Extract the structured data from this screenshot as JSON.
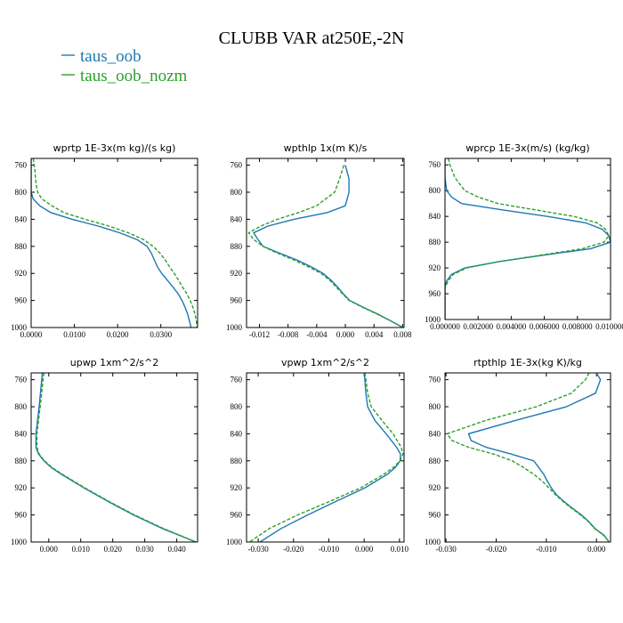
{
  "title": "CLUBB VAR at250E,-2N",
  "colors": {
    "taus_oob": "#1f77b4",
    "taus_oob_nozm": "#2ca02c"
  },
  "legend": [
    {
      "name": "taus_oob",
      "color": "#1f77b4",
      "style": "solid"
    },
    {
      "name": "taus_oob_nozm",
      "color": "#2ca02c",
      "style": "dashed"
    }
  ],
  "chart_data": [
    {
      "type": "line",
      "title": "wprtp  1E-3x(m kg)/(s kg)",
      "xlim": [
        0.0,
        0.0385
      ],
      "ylim": [
        1000,
        750
      ],
      "xticks": [
        "0.0000",
        "0.0100",
        "0.0200",
        "0.0300"
      ],
      "xtick_values": [
        0.0,
        0.01,
        0.02,
        0.03
      ],
      "yticks": [
        "760",
        "800",
        "840",
        "880",
        "920",
        "960",
        "1000"
      ],
      "y": [
        750,
        760,
        770,
        780,
        790,
        800,
        810,
        820,
        830,
        840,
        850,
        860,
        870,
        880,
        890,
        900,
        910,
        920,
        930,
        940,
        950,
        960,
        970,
        980,
        990,
        1000
      ],
      "series": [
        {
          "name": "taus_oob",
          "values": [
            0.0,
            0.0,
            0.0,
            0.0,
            0.0,
            0.0,
            0.0005,
            0.002,
            0.0045,
            0.0095,
            0.0155,
            0.0205,
            0.0245,
            0.0268,
            0.0278,
            0.0285,
            0.0292,
            0.0302,
            0.0315,
            0.0328,
            0.034,
            0.0349,
            0.0356,
            0.0362,
            0.0366,
            0.037
          ]
        },
        {
          "name": "taus_oob_nozm",
          "values": [
            0.0005,
            0.0007,
            0.0009,
            0.001,
            0.0012,
            0.0015,
            0.0025,
            0.0048,
            0.0075,
            0.0125,
            0.018,
            0.0225,
            0.026,
            0.0282,
            0.0298,
            0.031,
            0.032,
            0.0331,
            0.0341,
            0.035,
            0.036,
            0.0368,
            0.0374,
            0.0379,
            0.0382,
            0.0384
          ]
        }
      ]
    },
    {
      "type": "line",
      "title": "wpthlp  1x(m K)/s",
      "xlim": [
        -0.0138,
        0.0082
      ],
      "ylim": [
        1000,
        750
      ],
      "xticks": [
        "-0.012",
        "-0.008",
        "-0.004",
        "0.000",
        "0.004",
        "0.008"
      ],
      "xtick_values": [
        -0.012,
        -0.008,
        -0.004,
        0.0,
        0.004,
        0.008
      ],
      "yticks": [
        "760",
        "800",
        "840",
        "880",
        "920",
        "960",
        "1000"
      ],
      "y": [
        760,
        780,
        800,
        820,
        830,
        840,
        850,
        860,
        870,
        880,
        890,
        900,
        910,
        920,
        930,
        940,
        950,
        960,
        970,
        980,
        990,
        1000
      ],
      "series": [
        {
          "name": "taus_oob",
          "values": [
            0.0,
            0.0005,
            0.0005,
            0.0,
            -0.0025,
            -0.0072,
            -0.0108,
            -0.0128,
            -0.0122,
            -0.0115,
            -0.0092,
            -0.0068,
            -0.0048,
            -0.0031,
            -0.002,
            -0.0011,
            -0.0003,
            0.0006,
            0.0025,
            0.0045,
            0.0063,
            0.008
          ]
        },
        {
          "name": "taus_oob_nozm",
          "values": [
            -0.0002,
            -0.0008,
            -0.0015,
            -0.004,
            -0.0065,
            -0.0095,
            -0.0118,
            -0.0135,
            -0.0128,
            -0.0115,
            -0.0095,
            -0.0072,
            -0.0052,
            -0.0034,
            -0.0022,
            -0.0013,
            -0.0004,
            0.0005,
            0.0024,
            0.0044,
            0.0063,
            0.0081
          ]
        }
      ]
    },
    {
      "type": "line",
      "title": "wprcp  1E-3x(m/s) (kg/kg)",
      "xlim": [
        0.0,
        0.01
      ],
      "ylim": [
        1000,
        750
      ],
      "xticks": [
        "0.000000",
        "0.002000",
        "0.004000",
        "0.006000",
        "0.008000",
        "0.010000"
      ],
      "xtick_values": [
        0.0,
        0.002,
        0.004,
        0.006,
        0.008,
        0.01
      ],
      "yticks": [
        "760",
        "800",
        "840",
        "880",
        "920",
        "960",
        "1000"
      ],
      "y": [
        750,
        760,
        780,
        800,
        810,
        820,
        830,
        840,
        850,
        860,
        870,
        880,
        890,
        900,
        910,
        920,
        930,
        940,
        950,
        960,
        980,
        1000
      ],
      "series": [
        {
          "name": "taus_oob",
          "values": [
            0.0,
            0.0,
            0.0,
            0.0001,
            0.0004,
            0.001,
            0.0035,
            0.0062,
            0.0085,
            0.0095,
            0.0099,
            0.01,
            0.0088,
            0.006,
            0.0033,
            0.0012,
            0.0004,
            0.0001,
            0.0,
            0.0,
            0.0,
            0.0
          ]
        },
        {
          "name": "taus_oob_nozm",
          "values": [
            0.0002,
            0.0003,
            0.0006,
            0.0012,
            0.002,
            0.0032,
            0.0055,
            0.0078,
            0.0092,
            0.0097,
            0.0099,
            0.0096,
            0.0083,
            0.0058,
            0.0033,
            0.0013,
            0.0005,
            0.0002,
            0.0,
            0.0,
            0.0,
            0.0
          ]
        }
      ]
    },
    {
      "type": "line",
      "title": "upwp  1xm^2/s^2",
      "xlim": [
        -0.0055,
        0.0465
      ],
      "ylim": [
        1000,
        750
      ],
      "xticks": [
        "0.000",
        "0.010",
        "0.020",
        "0.030",
        "0.040"
      ],
      "xtick_values": [
        0.0,
        0.01,
        0.02,
        0.03,
        0.04
      ],
      "yticks": [
        "760",
        "800",
        "840",
        "880",
        "920",
        "960",
        "1000"
      ],
      "y": [
        750,
        760,
        780,
        800,
        820,
        840,
        860,
        870,
        880,
        890,
        900,
        920,
        940,
        960,
        980,
        1000
      ],
      "series": [
        {
          "name": "taus_oob",
          "values": [
            -0.002,
            -0.0022,
            -0.0026,
            -0.003,
            -0.0035,
            -0.004,
            -0.004,
            -0.0032,
            -0.0015,
            0.0008,
            0.004,
            0.011,
            0.0185,
            0.0265,
            0.0355,
            0.046
          ]
        },
        {
          "name": "taus_oob_nozm",
          "values": [
            -0.0015,
            -0.0018,
            -0.0022,
            -0.0027,
            -0.0032,
            -0.0037,
            -0.0037,
            -0.003,
            -0.0013,
            0.0011,
            0.0043,
            0.0113,
            0.0188,
            0.0268,
            0.0358,
            0.046
          ]
        }
      ]
    },
    {
      "type": "line",
      "title": "vpwp  1xm^2/s^2",
      "xlim": [
        -0.0333,
        0.0113
      ],
      "ylim": [
        1000,
        750
      ],
      "xticks": [
        "-0.030",
        "-0.020",
        "-0.010",
        "0.000",
        "0.010"
      ],
      "xtick_values": [
        -0.03,
        -0.02,
        -0.01,
        0.0,
        0.01
      ],
      "yticks": [
        "760",
        "800",
        "840",
        "880",
        "920",
        "960",
        "1000"
      ],
      "y": [
        750,
        760,
        780,
        800,
        820,
        840,
        860,
        870,
        880,
        890,
        900,
        920,
        940,
        960,
        980,
        1000
      ],
      "series": [
        {
          "name": "taus_oob",
          "values": [
            0.0,
            0.0002,
            0.0005,
            0.001,
            0.003,
            0.0062,
            0.0092,
            0.0103,
            0.0102,
            0.0088,
            0.0065,
            0.0002,
            -0.008,
            -0.016,
            -0.0235,
            -0.0295
          ]
        },
        {
          "name": "taus_oob_nozm",
          "values": [
            0.0002,
            0.0005,
            0.001,
            0.002,
            0.005,
            0.0082,
            0.0105,
            0.011,
            0.0102,
            0.0082,
            0.0055,
            -0.001,
            -0.0098,
            -0.0188,
            -0.0268,
            -0.0325
          ]
        }
      ]
    },
    {
      "type": "line",
      "title": "rtpthlp  1E-3x(kg K)/kg",
      "xlim": [
        -0.0302,
        0.0028
      ],
      "ylim": [
        1000,
        750
      ],
      "xticks": [
        "-0.030",
        "-0.020",
        "-0.010",
        "0.000"
      ],
      "xtick_values": [
        -0.03,
        -0.02,
        -0.01,
        0.0
      ],
      "yticks": [
        "760",
        "800",
        "840",
        "880",
        "920",
        "960",
        "1000"
      ],
      "y": [
        750,
        760,
        780,
        800,
        820,
        840,
        850,
        860,
        870,
        880,
        890,
        900,
        910,
        920,
        930,
        940,
        950,
        960,
        970,
        980,
        990,
        1000
      ],
      "series": [
        {
          "name": "taus_oob",
          "values": [
            0.0,
            0.0008,
            -0.0002,
            -0.006,
            -0.016,
            -0.0255,
            -0.025,
            -0.022,
            -0.017,
            -0.0125,
            -0.0115,
            -0.0105,
            -0.0098,
            -0.009,
            -0.008,
            -0.0065,
            -0.0048,
            -0.003,
            -0.0015,
            -0.0003,
            0.0015,
            0.0025
          ]
        },
        {
          "name": "taus_oob_nozm",
          "values": [
            -0.0015,
            -0.0022,
            -0.005,
            -0.012,
            -0.022,
            -0.0298,
            -0.0288,
            -0.0255,
            -0.0205,
            -0.0168,
            -0.0145,
            -0.0125,
            -0.0108,
            -0.0095,
            -0.0082,
            -0.0067,
            -0.005,
            -0.0032,
            -0.0016,
            -0.0004,
            0.0014,
            0.0026
          ]
        }
      ]
    }
  ]
}
